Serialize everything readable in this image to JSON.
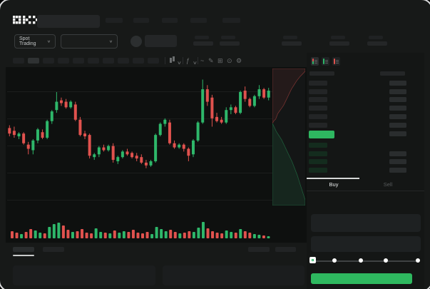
{
  "app": {
    "logo_text": "OKX"
  },
  "colors": {
    "up_green": "#2eb76a",
    "down_red": "#e0524e",
    "buy_button_green": "#2eb85f",
    "price_bar_green": "#2eb760",
    "bid_row_green": "#142c1e",
    "placeholder_gray": "#242627"
  },
  "ticker_bar": {
    "market_selector_label": "Spot Trading",
    "chevron_glyph": "∨"
  },
  "toolbar": {
    "timeframe_count": 10,
    "active_timeframe_index": 1,
    "icon_glyphs": {
      "indicator": "ƒ",
      "wave": "~",
      "pencil": "✎",
      "grid": "⊞",
      "target": "⊙",
      "gear": "⚙"
    }
  },
  "orderbook": {
    "view_icons": [
      {
        "name": "book-both",
        "top": "#e0524e",
        "bottom": "#2eb76a",
        "active": true
      },
      {
        "name": "book-bids",
        "top": "#2eb76a",
        "bottom": "#2eb76a",
        "active": false
      },
      {
        "name": "book-asks",
        "top": "#e0524e",
        "bottom": "#e0524e",
        "active": false
      }
    ],
    "ask_rows": [
      [
        1,
        1
      ],
      [
        1,
        1
      ],
      [
        1,
        1
      ],
      [
        1,
        1
      ],
      [
        1,
        1
      ],
      [
        1,
        1
      ]
    ],
    "price_row_has_right_bar": true,
    "bid_rows": [
      [
        1,
        0
      ],
      [
        1,
        1
      ],
      [
        1,
        1
      ],
      [
        1,
        1
      ]
    ],
    "buy_tab_label": "Buy",
    "sell_tab_label": "Sell",
    "active_tab": "Buy"
  },
  "chart_data": {
    "type": "candlestick",
    "title": "",
    "xlabel": "",
    "ylabel": "",
    "y_scale": "normalized 0-100 (no axis labels visible in screenshot)",
    "grid": "horizontal faint lines",
    "candles": [
      [
        57,
        59,
        51,
        53
      ],
      [
        55,
        58,
        50,
        52
      ],
      [
        51,
        54,
        49,
        53
      ],
      [
        53,
        54,
        45,
        46
      ],
      [
        45,
        47,
        38,
        42
      ],
      [
        41,
        49,
        38,
        48
      ],
      [
        48,
        57,
        46,
        56
      ],
      [
        54,
        56,
        49,
        50
      ],
      [
        50,
        63,
        49,
        62
      ],
      [
        62,
        70,
        60,
        69
      ],
      [
        70,
        83,
        68,
        76
      ],
      [
        77,
        79,
        73,
        75
      ],
      [
        76,
        78,
        71,
        72
      ],
      [
        72,
        77,
        71,
        76
      ],
      [
        74,
        76,
        62,
        63
      ],
      [
        63,
        65,
        51,
        52
      ],
      [
        53,
        55,
        49,
        51
      ],
      [
        52,
        53,
        35,
        37
      ],
      [
        36,
        39,
        34,
        38
      ],
      [
        38,
        44,
        36,
        43
      ],
      [
        43,
        45,
        40,
        41
      ],
      [
        41,
        45,
        40,
        44
      ],
      [
        44,
        46,
        32,
        34
      ],
      [
        33,
        37,
        31,
        36
      ],
      [
        36,
        41,
        35,
        40
      ],
      [
        40,
        42,
        37,
        38
      ],
      [
        39,
        40,
        35,
        36
      ],
      [
        37,
        39,
        33,
        35
      ],
      [
        36,
        38,
        31,
        32
      ],
      [
        32,
        34,
        28,
        30
      ],
      [
        30,
        34,
        29,
        33
      ],
      [
        33,
        53,
        32,
        52
      ],
      [
        52,
        61,
        51,
        60
      ],
      [
        60,
        64,
        58,
        63
      ],
      [
        61,
        63,
        45,
        46
      ],
      [
        46,
        48,
        42,
        43
      ],
      [
        43,
        46,
        42,
        45
      ],
      [
        45,
        46,
        40,
        42
      ],
      [
        42,
        43,
        33,
        37
      ],
      [
        38,
        49,
        36,
        48
      ],
      [
        48,
        62,
        47,
        61
      ],
      [
        61,
        92,
        60,
        85
      ],
      [
        85,
        88,
        73,
        76
      ],
      [
        79,
        81,
        58,
        64
      ],
      [
        65,
        68,
        61,
        62
      ],
      [
        63,
        65,
        60,
        61
      ],
      [
        61,
        72,
        60,
        70
      ],
      [
        70,
        74,
        67,
        72
      ],
      [
        72,
        73,
        67,
        68
      ],
      [
        68,
        84,
        67,
        83
      ],
      [
        84,
        87,
        76,
        78
      ],
      [
        78,
        79,
        72,
        73
      ],
      [
        73,
        81,
        72,
        80
      ],
      [
        80,
        88,
        78,
        85
      ],
      [
        85,
        86,
        78,
        79
      ],
      [
        79,
        86,
        77,
        84
      ]
    ],
    "volume": [
      10,
      8,
      6,
      9,
      13,
      11,
      8,
      7,
      16,
      20,
      22,
      18,
      12,
      9,
      10,
      13,
      8,
      7,
      14,
      9,
      8,
      7,
      11,
      8,
      10,
      9,
      12,
      8,
      7,
      9,
      6,
      16,
      13,
      10,
      12,
      9,
      7,
      8,
      10,
      9,
      15,
      23,
      14,
      10,
      8,
      7,
      11,
      9,
      8,
      13,
      10,
      8,
      6,
      5,
      4,
      3
    ],
    "depth": {
      "asks": [
        [
          0,
          40
        ],
        [
          5,
          38
        ],
        [
          10,
          37
        ],
        [
          16,
          33
        ],
        [
          22,
          31
        ],
        [
          28,
          29
        ],
        [
          34,
          27
        ],
        [
          40,
          24
        ],
        [
          46,
          21
        ],
        [
          52,
          18
        ],
        [
          58,
          15
        ],
        [
          66,
          12
        ],
        [
          74,
          9
        ],
        [
          84,
          6
        ],
        [
          92,
          4
        ],
        [
          100,
          2
        ]
      ],
      "bids": [
        [
          0,
          40
        ],
        [
          6,
          43
        ],
        [
          12,
          46
        ],
        [
          20,
          49
        ],
        [
          28,
          52
        ],
        [
          36,
          56
        ],
        [
          44,
          60
        ],
        [
          52,
          64
        ],
        [
          60,
          68
        ],
        [
          68,
          73
        ],
        [
          76,
          78
        ],
        [
          84,
          84
        ],
        [
          92,
          90
        ],
        [
          100,
          96
        ]
      ]
    }
  }
}
